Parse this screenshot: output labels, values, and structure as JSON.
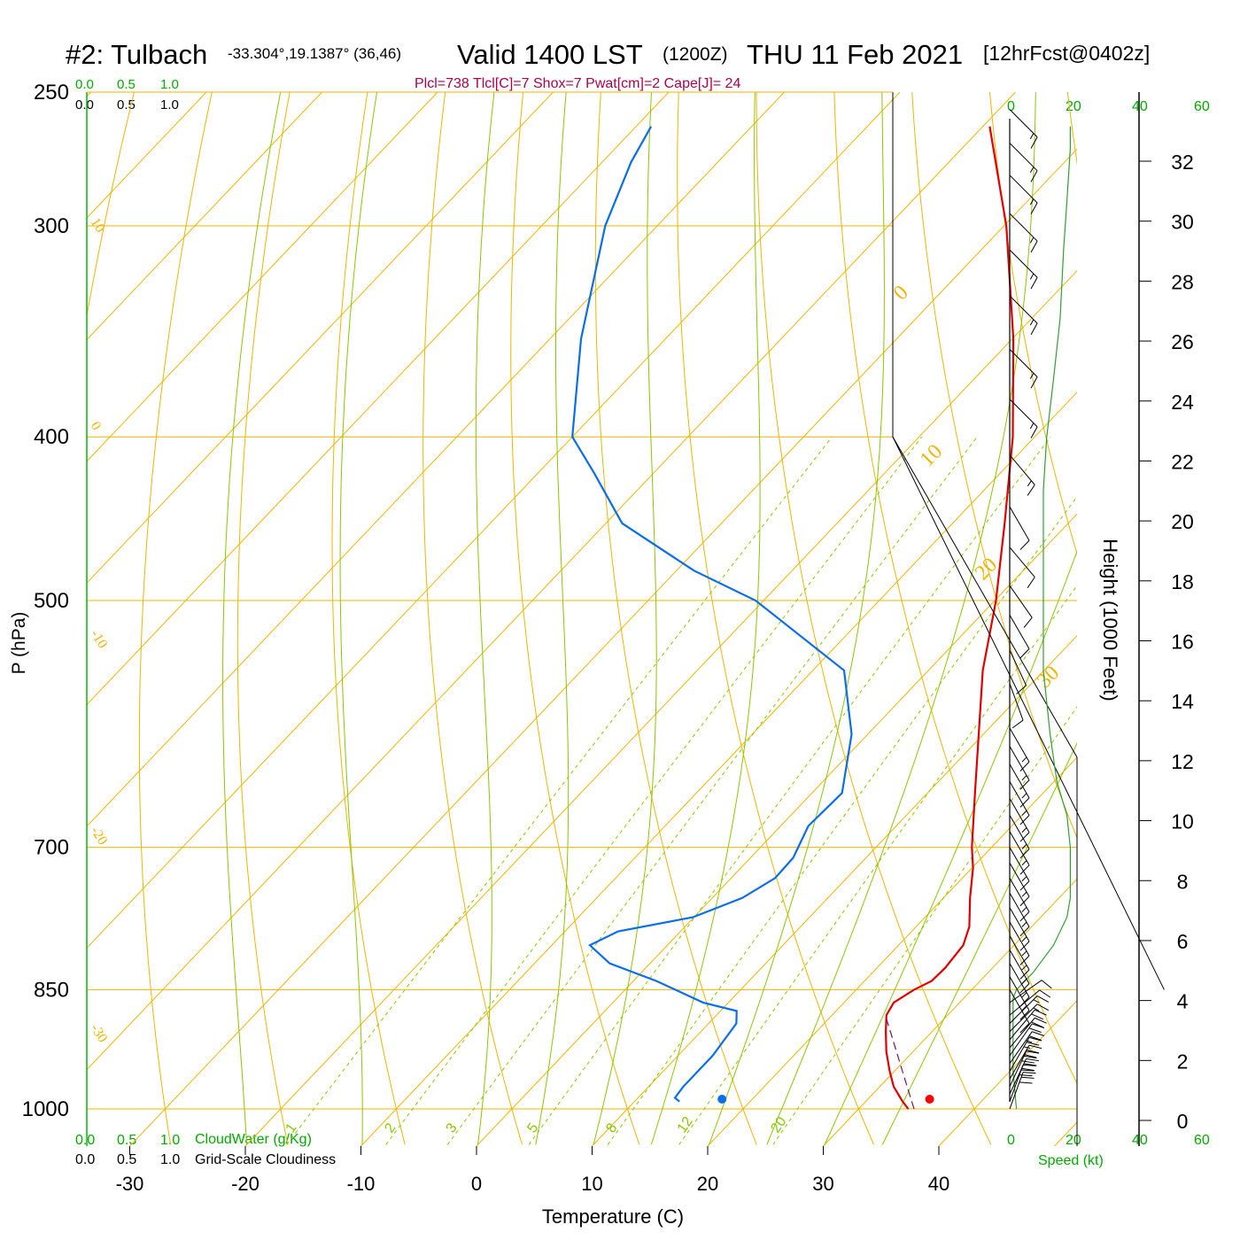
{
  "title": {
    "station": "#2: Tulbach",
    "coords": "-33.304°,19.1387° (36,46)",
    "valid": "Valid 1400 LST",
    "utc": "(1200Z)",
    "date": "THU 11 Feb 2021",
    "forecast": "[12hrFcst@0402z]"
  },
  "params_line": "Plcl=738 Tlcl[C]=7 Shox=7 Pwat[cm]=2 Cape[J]= 24",
  "colors": {
    "isotherm": "#f0b400",
    "dry_adiabat": "#f0b400",
    "moist_adiabat": "#88c800",
    "mixing_ratio": "#88c800",
    "temperature": "#e00000",
    "dewpoint": "#0a6ee8",
    "wind_speed": "#30a030",
    "params": "#aa0050",
    "green_label": "#00aa00"
  },
  "scale_labels": {
    "cloudwater_top": [
      "0.0",
      "0.5",
      "1.0"
    ],
    "cloudiness_top": [
      "0.0",
      "0.5",
      "1.0"
    ],
    "cloudwater_bottom": [
      "0.0",
      "0.5",
      "1.0"
    ],
    "cloudiness_bottom": [
      "0.0",
      "0.5",
      "1.0"
    ],
    "cloudwater_title": "CloudWater (g/Kg)",
    "cloudiness_title": "Grid-Scale Cloudiness",
    "speed_top_black": [
      "0",
      "40"
    ],
    "speed_top_green": [
      "20",
      "60"
    ],
    "speed_bottom_black": [
      "0",
      "40"
    ],
    "speed_bottom_green": [
      "20",
      "60"
    ],
    "speed_title": "Speed (kt)"
  },
  "chart_data": {
    "type": "skew-t",
    "xlabel": "Temperature (C)",
    "ylabel": "P (hPa)",
    "y2label": "Height (1000 Feet)",
    "xticks": [
      -30,
      -20,
      -10,
      0,
      10,
      20,
      30,
      40
    ],
    "pressure_ticks": [
      250,
      300,
      400,
      500,
      700,
      850,
      1000
    ],
    "height_ticks": [
      0,
      2,
      4,
      6,
      8,
      10,
      12,
      14,
      16,
      18,
      20,
      22,
      24,
      26,
      28,
      30,
      32
    ],
    "isotherm_labels": [
      {
        "text": "10",
        "t": 10
      },
      {
        "text": "0",
        "t": 0
      },
      {
        "text": "-10",
        "t": -10
      },
      {
        "text": "-20",
        "t": -20
      },
      {
        "text": "-30",
        "t": -30
      },
      {
        "text": "0",
        "t": 0
      },
      {
        "text": "10",
        "t": 10
      },
      {
        "text": "20",
        "t": 20
      },
      {
        "text": "30",
        "t": 30
      }
    ],
    "mixing_ratio_labels": [
      "1",
      "2",
      "3",
      "5",
      "8",
      "12",
      "20"
    ],
    "temperature": [
      {
        "p": 1000,
        "t": 34.3
      },
      {
        "p": 990,
        "t": 33.2
      },
      {
        "p": 970,
        "t": 31.2
      },
      {
        "p": 950,
        "t": 29.6
      },
      {
        "p": 925,
        "t": 27.7
      },
      {
        "p": 900,
        "t": 26.0
      },
      {
        "p": 880,
        "t": 24.7
      },
      {
        "p": 865,
        "t": 24.3
      },
      {
        "p": 850,
        "t": 25.0
      },
      {
        "p": 840,
        "t": 25.8
      },
      {
        "p": 825,
        "t": 25.9
      },
      {
        "p": 800,
        "t": 25.6
      },
      {
        "p": 780,
        "t": 24.6
      },
      {
        "p": 750,
        "t": 22.3
      },
      {
        "p": 720,
        "t": 20.1
      },
      {
        "p": 700,
        "t": 18.3
      },
      {
        "p": 650,
        "t": 14.1
      },
      {
        "p": 600,
        "t": 9.6
      },
      {
        "p": 550,
        "t": 4.7
      },
      {
        "p": 500,
        "t": 0.1
      },
      {
        "p": 450,
        "t": -5.5
      },
      {
        "p": 400,
        "t": -11.9
      },
      {
        "p": 350,
        "t": -19.9
      },
      {
        "p": 300,
        "t": -29.8
      },
      {
        "p": 262,
        "t": -39.4
      }
    ],
    "dewpoint": [
      {
        "p": 990,
        "t": 13.9
      },
      {
        "p": 985,
        "t": 13.2
      },
      {
        "p": 970,
        "t": 13.0
      },
      {
        "p": 930,
        "t": 13.0
      },
      {
        "p": 890,
        "t": 12.4
      },
      {
        "p": 875,
        "t": 11.4
      },
      {
        "p": 865,
        "t": 7.8
      },
      {
        "p": 840,
        "t": 2.0
      },
      {
        "p": 820,
        "t": -3.5
      },
      {
        "p": 800,
        "t": -6.7
      },
      {
        "p": 785,
        "t": -5.4
      },
      {
        "p": 770,
        "t": -0.1
      },
      {
        "p": 750,
        "t": 2.6
      },
      {
        "p": 730,
        "t": 3.8
      },
      {
        "p": 710,
        "t": 3.7
      },
      {
        "p": 680,
        "t": 2.4
      },
      {
        "p": 650,
        "t": 2.6
      },
      {
        "p": 600,
        "t": -1.4
      },
      {
        "p": 550,
        "t": -7.3
      },
      {
        "p": 500,
        "t": -20.7
      },
      {
        "p": 480,
        "t": -28.5
      },
      {
        "p": 450,
        "t": -38.6
      },
      {
        "p": 420,
        "t": -45.2
      },
      {
        "p": 400,
        "t": -50.0
      },
      {
        "p": 350,
        "t": -57.3
      },
      {
        "p": 300,
        "t": -64.5
      },
      {
        "p": 275,
        "t": -67.5
      },
      {
        "p": 262,
        "t": -68.7
      }
    ],
    "parcel": [
      {
        "p": 1000,
        "t": 34.8
      },
      {
        "p": 950,
        "t": 30.7
      },
      {
        "p": 900,
        "t": 26.4
      },
      {
        "p": 880,
        "t": 24.6
      }
    ],
    "surface_temperature": 35.5,
    "surface_dewpoint": 17.0,
    "wind_speed_profile": [
      {
        "p": 1000,
        "kt": 2
      },
      {
        "p": 950,
        "kt": 1
      },
      {
        "p": 900,
        "kt": 1
      },
      {
        "p": 860,
        "kt": 1
      },
      {
        "p": 850,
        "kt": 2
      },
      {
        "p": 830,
        "kt": 7
      },
      {
        "p": 800,
        "kt": 13
      },
      {
        "p": 770,
        "kt": 17
      },
      {
        "p": 750,
        "kt": 18
      },
      {
        "p": 720,
        "kt": 18
      },
      {
        "p": 700,
        "kt": 18
      },
      {
        "p": 670,
        "kt": 17
      },
      {
        "p": 640,
        "kt": 14
      },
      {
        "p": 600,
        "kt": 12
      },
      {
        "p": 550,
        "kt": 10
      },
      {
        "p": 500,
        "kt": 10
      },
      {
        "p": 460,
        "kt": 10
      },
      {
        "p": 430,
        "kt": 10
      },
      {
        "p": 400,
        "kt": 11
      },
      {
        "p": 370,
        "kt": 13
      },
      {
        "p": 340,
        "kt": 15
      },
      {
        "p": 310,
        "kt": 16
      },
      {
        "p": 290,
        "kt": 17
      },
      {
        "p": 270,
        "kt": 18
      },
      {
        "p": 262,
        "kt": 18
      }
    ],
    "wind_barbs": [
      {
        "p": 1000,
        "dir": 200,
        "kt": 30
      },
      {
        "p": 990,
        "dir": 200,
        "kt": 30
      },
      {
        "p": 980,
        "dir": 205,
        "kt": 30
      },
      {
        "p": 970,
        "dir": 205,
        "kt": 28
      },
      {
        "p": 960,
        "dir": 210,
        "kt": 28
      },
      {
        "p": 950,
        "dir": 210,
        "kt": 26
      },
      {
        "p": 940,
        "dir": 215,
        "kt": 24
      },
      {
        "p": 930,
        "dir": 215,
        "kt": 22
      },
      {
        "p": 920,
        "dir": 220,
        "kt": 20
      },
      {
        "p": 910,
        "dir": 220,
        "kt": 18
      },
      {
        "p": 900,
        "dir": 225,
        "kt": 16
      },
      {
        "p": 890,
        "dir": 225,
        "kt": 14
      },
      {
        "p": 880,
        "dir": 230,
        "kt": 12
      },
      {
        "p": 865,
        "dir": 235,
        "kt": 12
      },
      {
        "p": 850,
        "dir": 330,
        "kt": 12
      },
      {
        "p": 835,
        "dir": 330,
        "kt": 13
      },
      {
        "p": 820,
        "dir": 330,
        "kt": 13
      },
      {
        "p": 805,
        "dir": 330,
        "kt": 13
      },
      {
        "p": 790,
        "dir": 330,
        "kt": 13
      },
      {
        "p": 775,
        "dir": 330,
        "kt": 13
      },
      {
        "p": 760,
        "dir": 330,
        "kt": 13
      },
      {
        "p": 745,
        "dir": 330,
        "kt": 13
      },
      {
        "p": 730,
        "dir": 330,
        "kt": 13
      },
      {
        "p": 715,
        "dir": 330,
        "kt": 13
      },
      {
        "p": 700,
        "dir": 330,
        "kt": 13
      },
      {
        "p": 685,
        "dir": 330,
        "kt": 13
      },
      {
        "p": 670,
        "dir": 330,
        "kt": 13
      },
      {
        "p": 655,
        "dir": 330,
        "kt": 13
      },
      {
        "p": 640,
        "dir": 330,
        "kt": 13
      },
      {
        "p": 625,
        "dir": 330,
        "kt": 13
      },
      {
        "p": 610,
        "dir": 330,
        "kt": 13
      },
      {
        "p": 595,
        "dir": 330,
        "kt": 13
      },
      {
        "p": 560,
        "dir": 340,
        "kt": 10
      },
      {
        "p": 535,
        "dir": 335,
        "kt": 10
      },
      {
        "p": 510,
        "dir": 330,
        "kt": 10
      },
      {
        "p": 490,
        "dir": 325,
        "kt": 10
      },
      {
        "p": 465,
        "dir": 320,
        "kt": 10
      },
      {
        "p": 440,
        "dir": 330,
        "kt": 10
      },
      {
        "p": 410,
        "dir": 320,
        "kt": 15
      },
      {
        "p": 380,
        "dir": 315,
        "kt": 15
      },
      {
        "p": 355,
        "dir": 315,
        "kt": 15
      },
      {
        "p": 330,
        "dir": 315,
        "kt": 15
      },
      {
        "p": 310,
        "dir": 315,
        "kt": 15
      },
      {
        "p": 295,
        "dir": 315,
        "kt": 15
      },
      {
        "p": 280,
        "dir": 315,
        "kt": 15
      },
      {
        "p": 268,
        "dir": 315,
        "kt": 15
      },
      {
        "p": 256,
        "dir": 315,
        "kt": 15
      }
    ]
  }
}
